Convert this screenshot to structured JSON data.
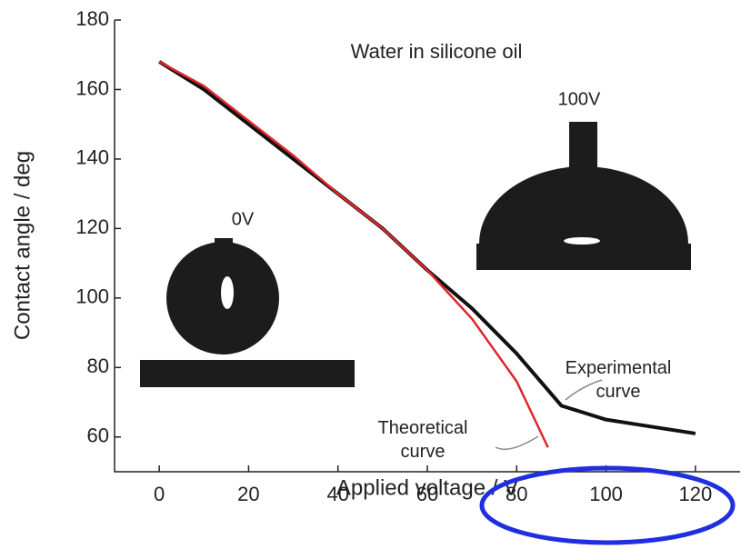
{
  "chart_data": {
    "type": "line",
    "xlabel": "Applied voltage / V",
    "ylabel": "Contact angle / deg",
    "xlim": [
      -10,
      130
    ],
    "ylim": [
      50,
      180
    ],
    "xticks": [
      0,
      20,
      40,
      60,
      80,
      100,
      120
    ],
    "yticks": [
      60,
      80,
      100,
      120,
      140,
      160,
      180
    ],
    "annotations": [
      "Water in silicone oil",
      "0V",
      "100V",
      "Experimental curve",
      "Theoretical curve"
    ],
    "series": [
      {
        "name": "Experimental curve",
        "color": "#111111",
        "x": [
          0,
          10,
          20,
          30,
          40,
          50,
          60,
          70,
          80,
          90,
          100,
          110,
          120
        ],
        "values": [
          168,
          160,
          150,
          140,
          130,
          120,
          108,
          97,
          84,
          69,
          65,
          63,
          61
        ]
      },
      {
        "name": "Theoretical curve",
        "color": "#e0262b",
        "x": [
          0,
          10,
          20,
          30,
          40,
          50,
          60,
          70,
          80,
          87
        ],
        "values": [
          168,
          161,
          151,
          141,
          130,
          120,
          108,
          94,
          76,
          57
        ]
      }
    ]
  }
}
